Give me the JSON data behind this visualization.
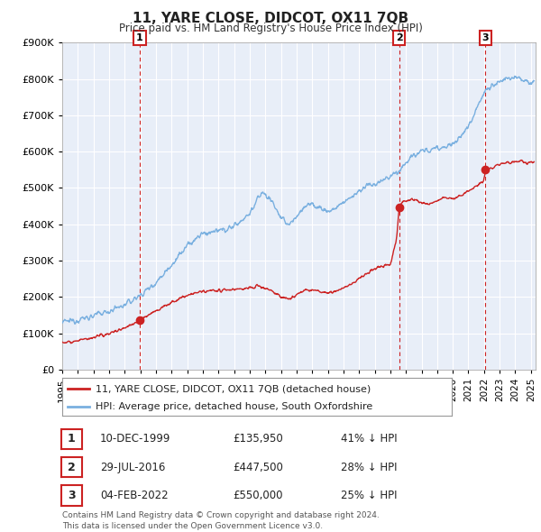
{
  "title": "11, YARE CLOSE, DIDCOT, OX11 7QB",
  "subtitle": "Price paid vs. HM Land Registry's House Price Index (HPI)",
  "plot_bg": "#e8eef8",
  "fig_bg": "#ffffff",
  "grid_color": "#ffffff",
  "hpi_color": "#7ab0e0",
  "price_color": "#cc2222",
  "ylim": [
    0,
    900000
  ],
  "yticks": [
    0,
    100000,
    200000,
    300000,
    400000,
    500000,
    600000,
    700000,
    800000,
    900000
  ],
  "xlim_start": 1995.0,
  "xlim_end": 2025.3,
  "sales": [
    {
      "label": "1",
      "date_num": 1999.96,
      "price": 135950
    },
    {
      "label": "2",
      "date_num": 2016.57,
      "price": 447500
    },
    {
      "label": "3",
      "date_num": 2022.09,
      "price": 550000
    }
  ],
  "vline_dates": [
    1999.96,
    2016.57,
    2022.09
  ],
  "table_rows": [
    {
      "num": "1",
      "date": "10-DEC-1999",
      "price": "£135,950",
      "pct": "41% ↓ HPI"
    },
    {
      "num": "2",
      "date": "29-JUL-2016",
      "price": "£447,500",
      "pct": "28% ↓ HPI"
    },
    {
      "num": "3",
      "date": "04-FEB-2022",
      "price": "£550,000",
      "pct": "25% ↓ HPI"
    }
  ],
  "legend_entries": [
    "11, YARE CLOSE, DIDCOT, OX11 7QB (detached house)",
    "HPI: Average price, detached house, South Oxfordshire"
  ],
  "footer": "Contains HM Land Registry data © Crown copyright and database right 2024.\nThis data is licensed under the Open Government Licence v3.0.",
  "xtick_years": [
    1995,
    1996,
    1997,
    1998,
    1999,
    2000,
    2001,
    2002,
    2003,
    2004,
    2005,
    2006,
    2007,
    2008,
    2009,
    2010,
    2011,
    2012,
    2013,
    2014,
    2015,
    2016,
    2017,
    2018,
    2019,
    2020,
    2021,
    2022,
    2023,
    2024,
    2025
  ]
}
